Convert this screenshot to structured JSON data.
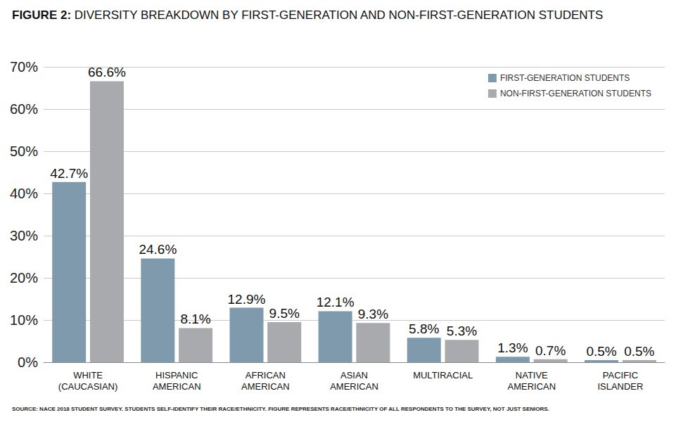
{
  "chart_data": {
    "type": "bar",
    "title": "FIGURE 2: DIVERSITY BREAKDOWN BY FIRST-GENERATION AND NON-FIRST-GENERATION STUDENTS",
    "source": "SOURCE: NACE 2018 STUDENT SURVEY. STUDENTS SELF-IDENTIFY THEIR RACE/ETHNICITY. FIGURE REPRESENTS RACE/ETHNICITY OF ALL RESPONDENTS TO THE SURVEY, NOT JUST SENIORS.",
    "categories": [
      "WHITE\n(CAUCASIAN)",
      "HISPANIC\nAMERICAN",
      "AFRICAN\nAMERICAN",
      "ASIAN\nAMERICAN",
      "MULTIRACIAL",
      "NATIVE\nAMERICAN",
      "PACIFIC\nISLANDER"
    ],
    "series": [
      {
        "name": "FIRST-GENERATION STUDENTS",
        "color": "#7f9aac",
        "values": [
          42.7,
          24.6,
          12.9,
          12.1,
          5.8,
          1.3,
          0.5
        ],
        "value_labels": [
          "42.7%",
          "24.6%",
          "12.9%",
          "12.1%",
          "5.8%",
          "1.3%",
          "0.5%"
        ]
      },
      {
        "name": "NON-FIRST-GENERATION STUDENTS",
        "color": "#a9aaae",
        "values": [
          66.6,
          8.1,
          9.5,
          9.3,
          5.3,
          0.7,
          0.5
        ],
        "value_labels": [
          "66.6%",
          "8.1%",
          "9.5%",
          "9.3%",
          "5.3%",
          "0.7%",
          "0.5%"
        ]
      }
    ],
    "ylim": [
      0,
      70
    ],
    "yticks": [
      {
        "value": 0,
        "label": "0%"
      },
      {
        "value": 10,
        "label": "10%"
      },
      {
        "value": 20,
        "label": "20%"
      },
      {
        "value": 30,
        "label": "30%"
      },
      {
        "value": 40,
        "label": "40%"
      },
      {
        "value": 50,
        "label": "50%"
      },
      {
        "value": 60,
        "label": "60%"
      },
      {
        "value": 70,
        "label": "70%"
      }
    ],
    "grid": true,
    "legend": "top-right",
    "data_labels": true
  }
}
